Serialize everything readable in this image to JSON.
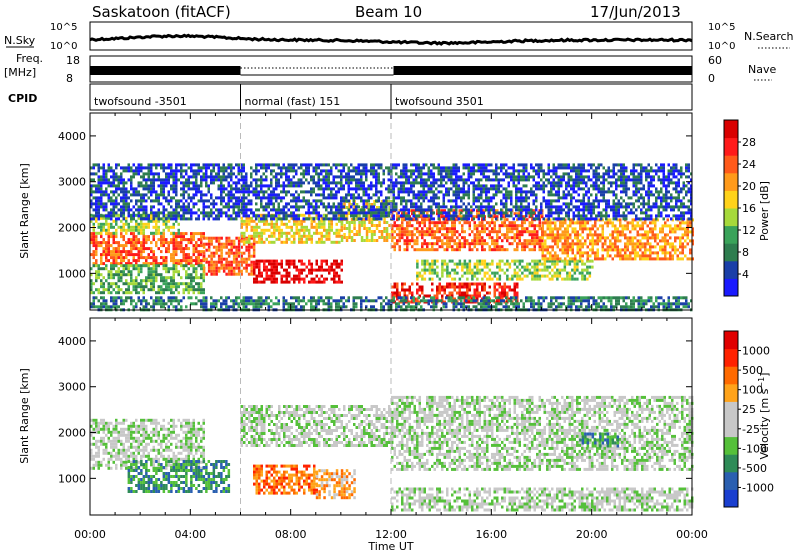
{
  "header": {
    "title": "Saskatoon (fitACF)",
    "beam": "Beam 10",
    "date": "17/Jun/2013"
  },
  "nsky_panel": {
    "left_label": "N.Sky",
    "right_label": "N.Search",
    "left_ticks": [
      "10^5",
      "10^0"
    ],
    "right_ticks": [
      "10^5",
      "10^0"
    ]
  },
  "freq_panel": {
    "left_label": "Freq.",
    "left_unit": "[MHz]",
    "right_label": "Nave",
    "left_ticks": [
      "18",
      "8"
    ],
    "right_ticks": [
      "60",
      "0"
    ]
  },
  "cpid_panel": {
    "label": "CPID",
    "segments": [
      {
        "name": "twofsound -3501",
        "start_hr": 0,
        "end_hr": 6
      },
      {
        "name": "normal (fast) 151",
        "start_hr": 6,
        "end_hr": 12
      },
      {
        "name": "twofsound 3501",
        "start_hr": 12,
        "end_hr": 24
      }
    ]
  },
  "x_axis": {
    "label": "Time UT",
    "ticks": [
      "00:00",
      "04:00",
      "08:00",
      "12:00",
      "16:00",
      "20:00",
      "00:00"
    ],
    "range_hr": [
      0,
      24
    ]
  },
  "colorbars": {
    "power": {
      "label": "Power [dB]",
      "ticks": [
        "28",
        "24",
        "20",
        "16",
        "12",
        "8",
        "4"
      ],
      "colors": [
        "#1a1aff",
        "#1a3fa8",
        "#2e7d4f",
        "#3aa35a",
        "#a6d93b",
        "#ffd21a",
        "#ff9a1a",
        "#ff5a1a",
        "#ff1a1a",
        "#d90000"
      ]
    },
    "velocity": {
      "label": "Velocity [m s^-1]",
      "ticks": [
        "1000",
        "500",
        "100",
        "25",
        "-25",
        "-100",
        "-500",
        "-1000"
      ],
      "colors": [
        "#1a3fd0",
        "#2a5fb0",
        "#2e8b57",
        "#55c03a",
        "#c8c8c8",
        "#c8c8c8",
        "#ffa31a",
        "#ff6a00",
        "#ff2200",
        "#e00000"
      ]
    }
  },
  "chart_data": [
    {
      "type": "heatmap",
      "name": "power",
      "ylabel": "Slant Range [km]",
      "ylim": [
        200,
        4500
      ],
      "yticks": [
        "4000",
        "3000",
        "2000",
        "1000"
      ],
      "xlim_hr": [
        0,
        24
      ],
      "dashed_lines_hr": [
        6,
        12
      ],
      "regions": [
        {
          "t0": 0.0,
          "t1": 4.5,
          "r0": 1200,
          "r1": 1900,
          "level": 7
        },
        {
          "t0": 0.0,
          "t1": 3.5,
          "r0": 1900,
          "r1": 2300,
          "level": 4
        },
        {
          "t0": 0.0,
          "t1": 4.5,
          "r0": 600,
          "r1": 1200,
          "level": 3
        },
        {
          "t0": 4.5,
          "t1": 6.5,
          "r0": 1000,
          "r1": 1800,
          "level": 7
        },
        {
          "t0": 6.5,
          "t1": 10.0,
          "r0": 800,
          "r1": 1300,
          "level": 9
        },
        {
          "t0": 6.0,
          "t1": 10.0,
          "r0": 1700,
          "r1": 2300,
          "level": 5
        },
        {
          "t0": 10.0,
          "t1": 12.0,
          "r0": 1700,
          "r1": 2600,
          "level": 5
        },
        {
          "t0": 12.0,
          "t1": 18.0,
          "r0": 1500,
          "r1": 2400,
          "level": 7
        },
        {
          "t0": 12.0,
          "t1": 17.0,
          "r0": 400,
          "r1": 800,
          "level": 8
        },
        {
          "t0": 13.0,
          "t1": 20.0,
          "r0": 900,
          "r1": 1300,
          "level": 4
        },
        {
          "t0": 18.0,
          "t1": 24.0,
          "r0": 1300,
          "r1": 2200,
          "level": 6
        },
        {
          "t0": 0.0,
          "t1": 24.0,
          "r0": 2200,
          "r1": 3400,
          "level": 1
        },
        {
          "t0": 0.0,
          "t1": 24.0,
          "r0": 200,
          "r1": 500,
          "level": 2
        }
      ]
    },
    {
      "type": "heatmap",
      "name": "velocity",
      "ylabel": "Slant Range [km]",
      "ylim": [
        200,
        4500
      ],
      "yticks": [
        "4000",
        "3000",
        "2000",
        "1000"
      ],
      "xlim_hr": [
        0,
        24
      ],
      "dashed_lines_hr": [
        6,
        12
      ],
      "regions": [
        {
          "t0": 0.0,
          "t1": 4.5,
          "r0": 1200,
          "r1": 2300,
          "level": 4
        },
        {
          "t0": 1.5,
          "t1": 5.5,
          "r0": 700,
          "r1": 1400,
          "level": 2
        },
        {
          "t0": 6.5,
          "t1": 9.0,
          "r0": 700,
          "r1": 1300,
          "level": 7
        },
        {
          "t0": 9.0,
          "t1": 10.5,
          "r0": 600,
          "r1": 1200,
          "level": 6
        },
        {
          "t0": 6.0,
          "t1": 12.0,
          "r0": 1700,
          "r1": 2600,
          "level": 4
        },
        {
          "t0": 12.0,
          "t1": 24.0,
          "r0": 1200,
          "r1": 2800,
          "level": 4
        },
        {
          "t0": 12.0,
          "t1": 24.0,
          "r0": 300,
          "r1": 800,
          "level": 4
        },
        {
          "t0": 19.5,
          "t1": 21.0,
          "r0": 1700,
          "r1": 2000,
          "level": 2
        }
      ]
    }
  ]
}
